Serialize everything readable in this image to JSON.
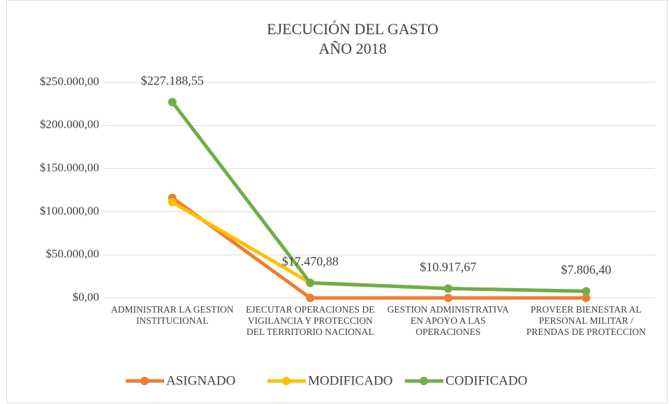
{
  "chart_data": {
    "type": "line",
    "title": "EJECUCIÓN DEL GASTO",
    "subtitle": "AÑO 2018",
    "categories": [
      "ADMINISTRAR LA GESTION INSTITUCIONAL",
      "EJECUTAR OPERACIONES DE VIGILANCIA Y PROTECCION DEL TERRITORIO NACIONAL",
      "GESTION ADMINISTRATIVA EN APOYO A LAS OPERACIONES",
      "PROVEER BIENESTAR AL PERSONAL MILITAR / PRENDAS DE PROTECCION"
    ],
    "series": [
      {
        "name": "ASIGNADO",
        "color": "#ed7d31",
        "values": [
          116000,
          0,
          0,
          0
        ]
      },
      {
        "name": "MODIFICADO",
        "color": "#ffc000",
        "values": [
          111000,
          17470.88,
          10917.67,
          7806.4
        ]
      },
      {
        "name": "CODIFICADO",
        "color": "#70ad47",
        "values": [
          227188.55,
          17470.88,
          10917.67,
          7806.4
        ],
        "value_labels": [
          "$227.188,55",
          "$17.470,88",
          "$10.917,67",
          "$7.806,40"
        ]
      }
    ],
    "ylim": [
      0,
      250000
    ],
    "yticks": [
      {
        "value": 0,
        "label": "$0,00"
      },
      {
        "value": 50000,
        "label": "$50.000,00"
      },
      {
        "value": 100000,
        "label": "$100.000,00"
      },
      {
        "value": 150000,
        "label": "$150.000,00"
      },
      {
        "value": 200000,
        "label": "$200.000,00"
      },
      {
        "value": 250000,
        "label": "$250.000,00"
      }
    ],
    "grid": true,
    "legend": "bottom"
  }
}
